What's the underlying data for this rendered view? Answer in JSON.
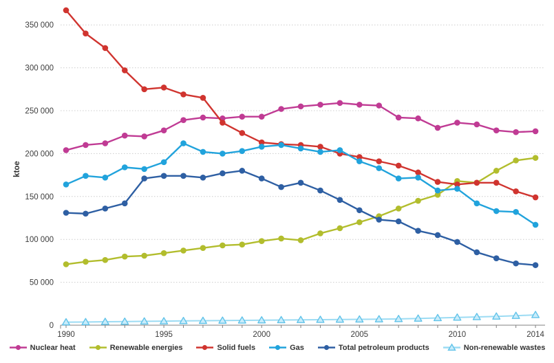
{
  "chart_data": {
    "type": "line",
    "title": "",
    "ylabel": "ktoe",
    "xlabel": "",
    "grid": "horizontal dotted",
    "legend_position": "bottom",
    "x": [
      1990,
      1991,
      1992,
      1993,
      1994,
      1995,
      1996,
      1997,
      1998,
      1999,
      2000,
      2001,
      2002,
      2003,
      2004,
      2005,
      2006,
      2007,
      2008,
      2009,
      2010,
      2011,
      2012,
      2013,
      2014
    ],
    "x_axis_labeled_years": [
      "1990",
      "1995",
      "2000",
      "2005",
      "2010",
      "2014"
    ],
    "y_axis": {
      "min": 0,
      "max": 370000,
      "tick_interval": 50000,
      "tick_values": [
        0,
        50000,
        100000,
        150000,
        200000,
        250000,
        300000,
        350000
      ],
      "tick_labels": [
        "0",
        "50 000",
        "100 000",
        "150 000",
        "200 000",
        "250 000",
        "300 000",
        "350 000"
      ]
    },
    "series": [
      {
        "name": "Nuclear heat",
        "color": "#c03b94",
        "marker": "circle",
        "values": [
          204000,
          210000,
          212000,
          221000,
          220000,
          227000,
          239000,
          242000,
          241000,
          243000,
          243000,
          252000,
          255000,
          257000,
          259000,
          257000,
          256000,
          242000,
          241000,
          230000,
          236000,
          234000,
          227000,
          225000,
          226000
        ]
      },
      {
        "name": "Renewable energies",
        "color": "#b2bd2d",
        "marker": "circle",
        "values": [
          71000,
          74000,
          76000,
          80000,
          81000,
          84000,
          87000,
          90000,
          93000,
          94000,
          98000,
          101000,
          99000,
          107000,
          113000,
          120000,
          127000,
          136000,
          145000,
          152000,
          168000,
          166000,
          180000,
          192000,
          195000
        ]
      },
      {
        "name": "Solid fuels",
        "color": "#d0342f",
        "marker": "circle",
        "values": [
          367000,
          340000,
          323000,
          297000,
          275000,
          277000,
          269000,
          265000,
          236000,
          224000,
          213000,
          211000,
          210000,
          208000,
          200000,
          196000,
          191000,
          186000,
          178000,
          167000,
          164000,
          166000,
          166000,
          156000,
          149000
        ]
      },
      {
        "name": "Gas",
        "color": "#21a3dc",
        "marker": "circle",
        "values": [
          164000,
          174000,
          172000,
          184000,
          182000,
          190000,
          212000,
          202000,
          200000,
          203000,
          208000,
          210000,
          206000,
          202000,
          204000,
          191000,
          183000,
          171000,
          172000,
          157000,
          159000,
          142000,
          133000,
          132000,
          117000
        ]
      },
      {
        "name": "Total petroleum products",
        "color": "#2e5fa3",
        "marker": "circle",
        "values": [
          131000,
          130000,
          136000,
          142000,
          171000,
          174000,
          174000,
          172000,
          177000,
          180000,
          171000,
          161000,
          166000,
          157000,
          146000,
          134000,
          123000,
          121000,
          110000,
          105000,
          97000,
          85000,
          78000,
          72000,
          70000
        ]
      },
      {
        "name": "Non-renewable wastes",
        "color": "#5fc2e9",
        "line_color": "#9bdbf3",
        "fill_color": "#c9ecfa",
        "marker": "triangle-outline",
        "values": [
          3500,
          3700,
          4000,
          4200,
          4500,
          4700,
          5000,
          5200,
          5400,
          5600,
          5800,
          6000,
          6200,
          6400,
          6600,
          6800,
          7000,
          7300,
          7800,
          8400,
          9000,
          9600,
          10200,
          11000,
          12000
        ]
      }
    ]
  },
  "style_colors": {
    "background": "#ffffff",
    "gridline": "#cccccc",
    "axis": "#808080",
    "tick_text": "#3c3c3c",
    "legend_text": "#333333"
  }
}
